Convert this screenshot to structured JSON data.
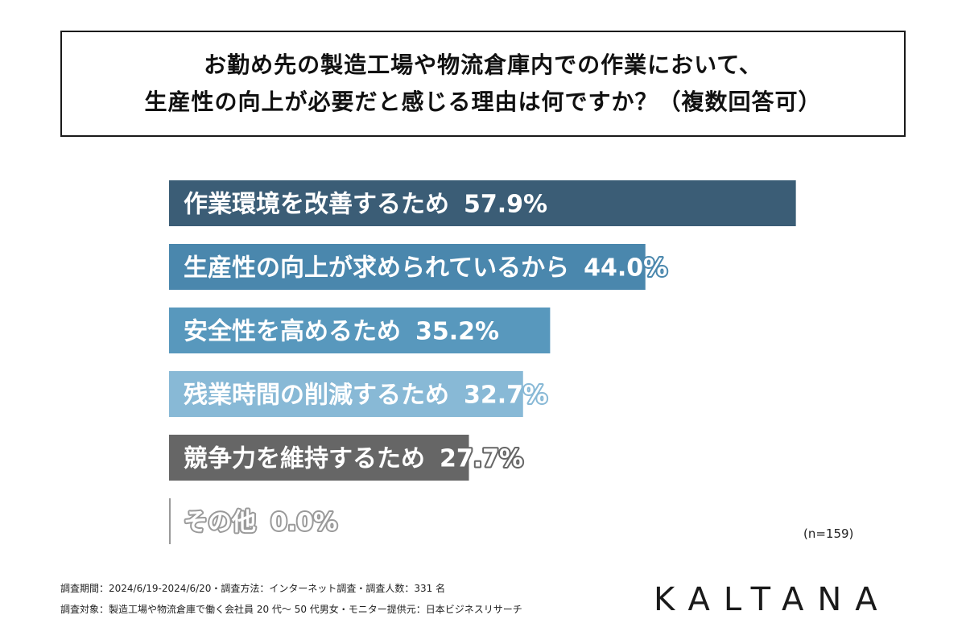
{
  "title": {
    "line1": "お勤め先の製造工場や物流倉庫内での作業において、",
    "line2": "生産性の向上が必要だと感じる理由は何ですか？（複数回答可）"
  },
  "chart_data": {
    "type": "bar",
    "orientation": "horizontal",
    "unit": "%",
    "categories": [
      "作業環境を改善するため",
      "生産性の向上が求められているから",
      "安全性を高めるため",
      "残業時間の削減するため",
      "競争力を維持するため",
      "その他"
    ],
    "values": [
      57.9,
      44.0,
      35.2,
      32.7,
      27.7,
      0.0
    ],
    "value_labels": [
      "57.9%",
      "44.0%",
      "35.2%",
      "32.7%",
      "27.7%",
      "0.0%"
    ],
    "colors": [
      "#3b5d76",
      "#4a87ad",
      "#5898bd",
      "#88b9d6",
      "#666666",
      "#9a9a9a"
    ],
    "xlim": [
      0,
      58
    ],
    "grid": false,
    "legend": "none"
  },
  "sample_size": "(n=159)",
  "footer": {
    "line1": "調査期間：2024/6/19-2024/6/20・調査方法：インターネット調査・調査人数：331 名",
    "line2": "調査対象：製造工場や物流倉庫で働く会社員 20 代〜 50 代男女・モニター提供元：日本ビジネスリサーチ"
  },
  "brand": "KALTANA"
}
